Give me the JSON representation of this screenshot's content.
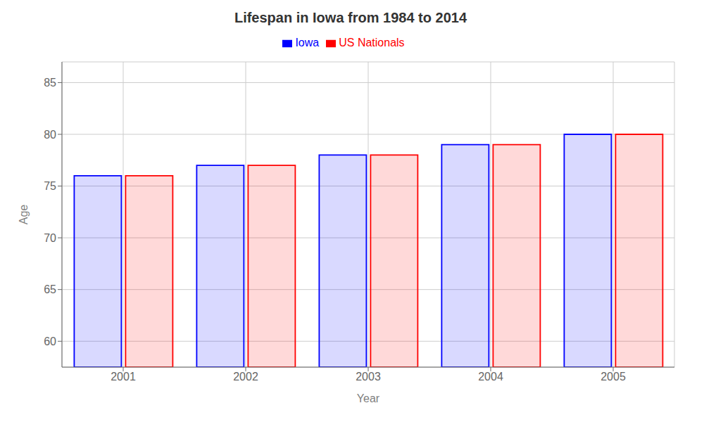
{
  "chart_data": {
    "type": "bar",
    "title": "Lifespan in Iowa from 1984 to 2014",
    "x_label": "Year",
    "y_label": "Age",
    "categories": [
      "2001",
      "2002",
      "2003",
      "2004",
      "2005"
    ],
    "series": [
      {
        "name": "Iowa",
        "color": "#0000ff",
        "values": [
          76,
          77,
          78,
          79,
          80
        ]
      },
      {
        "name": "US Nationals",
        "color": "#ff0000",
        "values": [
          76,
          77,
          78,
          79,
          80
        ]
      }
    ],
    "ylim": [
      57.5,
      87
    ],
    "yticks": [
      60,
      65,
      70,
      75,
      80,
      85
    ],
    "grid": true,
    "legend": "top"
  }
}
